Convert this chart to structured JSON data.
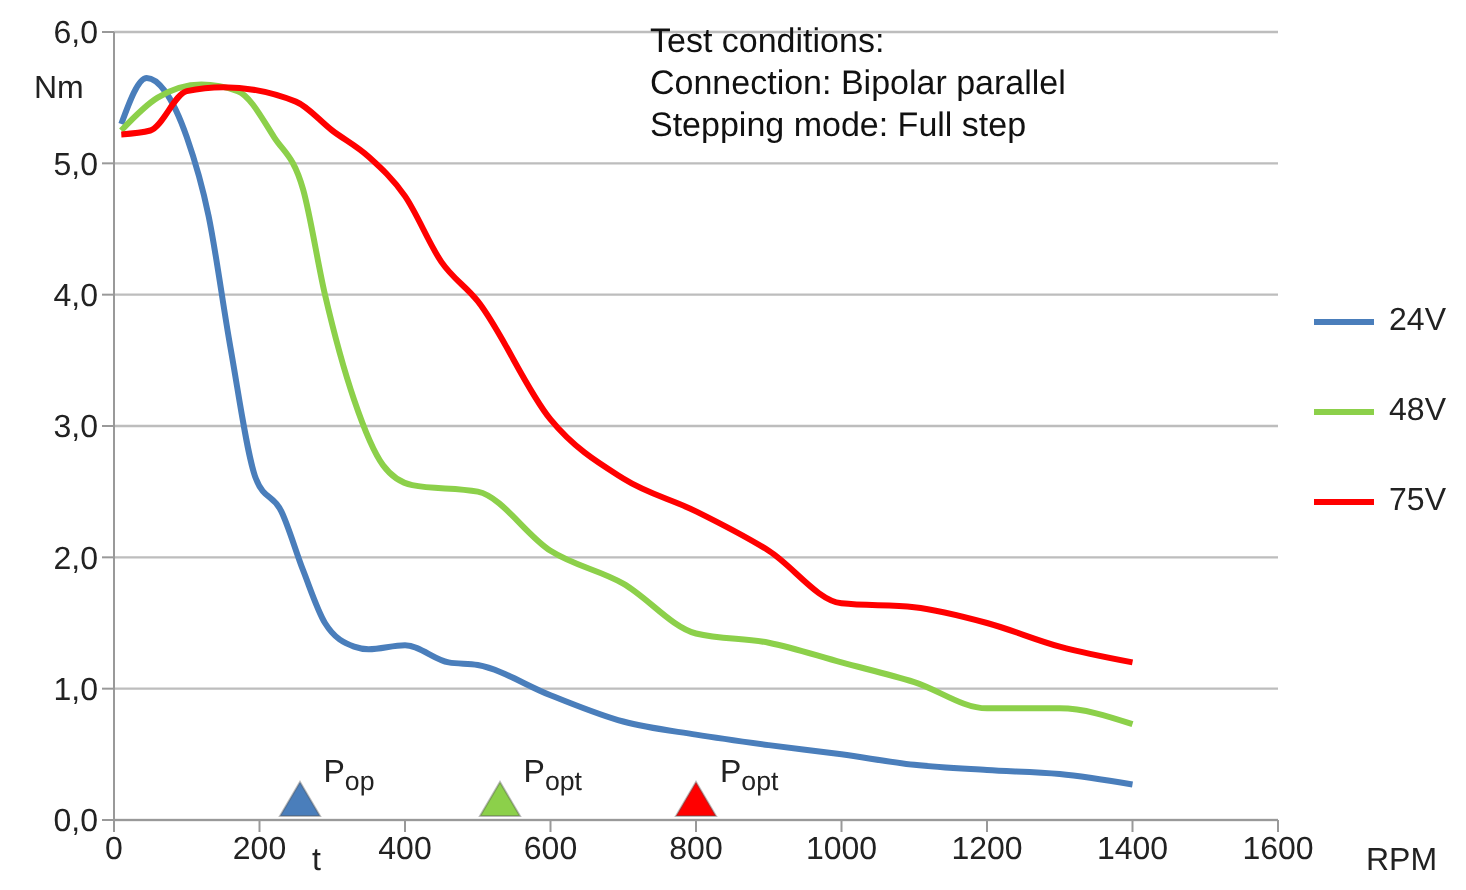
{
  "chart_data": {
    "type": "line",
    "xlabel": "RPM",
    "ylabel": "Nm",
    "xlim": [
      0,
      1600
    ],
    "xticks": [
      0,
      200,
      400,
      600,
      800,
      1000,
      1200,
      1400,
      1600
    ],
    "ylim": [
      0,
      6
    ],
    "yticks": [
      {
        "value": 0,
        "label": "0,0"
      },
      {
        "value": 1,
        "label": "1,0"
      },
      {
        "value": 2,
        "label": "2,0"
      },
      {
        "value": 3,
        "label": "3,0"
      },
      {
        "value": 4,
        "label": "4,0"
      },
      {
        "value": 5,
        "label": "5,0"
      },
      {
        "value": 6,
        "label": "6,0"
      }
    ],
    "grid": "y",
    "legend": "right",
    "series": [
      {
        "name": "24V",
        "color": "#4a7ebb",
        "x": [
          10,
          45,
          70,
          100,
          130,
          160,
          195,
          230,
          260,
          290,
          330,
          350,
          400,
          460,
          500,
          600,
          700,
          800,
          900,
          1000,
          1100,
          1200,
          1300,
          1400
        ],
        "values": [
          5.3,
          5.65,
          5.55,
          5.2,
          4.6,
          3.6,
          2.6,
          2.35,
          1.9,
          1.5,
          1.32,
          1.3,
          1.33,
          1.2,
          1.18,
          0.95,
          0.75,
          0.65,
          0.57,
          0.5,
          0.42,
          0.38,
          0.35,
          0.27
        ]
      },
      {
        "name": "48V",
        "color": "#8cd04a",
        "x": [
          10,
          60,
          120,
          170,
          220,
          260,
          290,
          330,
          370,
          410,
          500,
          600,
          700,
          800,
          900,
          1000,
          1100,
          1200,
          1300,
          1400
        ],
        "values": [
          5.25,
          5.5,
          5.6,
          5.55,
          5.2,
          4.8,
          4.0,
          3.2,
          2.7,
          2.55,
          2.5,
          2.05,
          1.8,
          1.42,
          1.35,
          1.2,
          1.05,
          0.85,
          0.85,
          0.73
        ]
      },
      {
        "name": "75V",
        "color": "#ff0000",
        "x": [
          10,
          50,
          100,
          150,
          250,
          300,
          350,
          400,
          450,
          500,
          600,
          700,
          800,
          900,
          1000,
          1100,
          1200,
          1300,
          1400
        ],
        "values": [
          5.22,
          5.25,
          5.55,
          5.58,
          5.47,
          5.25,
          5.05,
          4.75,
          4.25,
          3.95,
          3.05,
          2.6,
          2.35,
          2.05,
          1.65,
          1.62,
          1.5,
          1.32,
          1.2
        ]
      }
    ],
    "annotations": [
      "Test conditions:",
      "Connection: Bipolar parallel",
      "Stepping mode: Full step",
      {
        "text": "P$_{op}$",
        "x": 255,
        "y": 0.15
      },
      {
        "text": "P$_{opt}$",
        "x": 530,
        "y": 0.15
      },
      {
        "text": "P$_{opt}$",
        "x": 800,
        "y": 0.15
      },
      "t"
    ]
  }
}
